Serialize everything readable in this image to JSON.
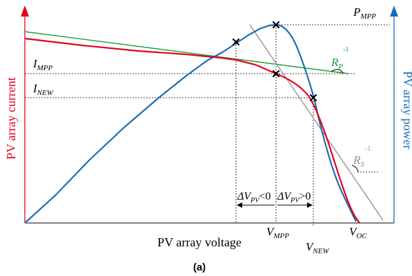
{
  "figure": {
    "caption": "(a)",
    "colors": {
      "current_axis": "#e4001b",
      "power_axis": "#1a6db5",
      "iv_curve": "#e4001b",
      "pv_curve": "#1a6db5",
      "rp_line": "#1f9e3a",
      "rs_line": "#8c8c8c",
      "guides": "#000000"
    },
    "labels": {
      "left_axis": "PV array current",
      "right_axis": "PV array power",
      "bottom_axis": "PV array voltage",
      "i_mpp": {
        "main": "I",
        "sub": "MPP"
      },
      "i_new": {
        "main": "I",
        "sub": "NEW"
      },
      "p_mpp": {
        "main": "P",
        "sub": "MPP"
      },
      "v_mpp": {
        "main": "V",
        "sub": "MPP"
      },
      "v_new": {
        "main": "V",
        "sub": "NEW"
      },
      "v_oc": {
        "main": "V",
        "sub": "OC"
      },
      "rp": {
        "main": "R",
        "sub": "P",
        "sup": "-1"
      },
      "rs": {
        "main": "R",
        "sub": "S",
        "sup": "-1"
      },
      "dv_neg": {
        "main": "ΔV",
        "sub": "PV",
        "rest": "<0"
      },
      "dv_pos": {
        "main": "ΔV",
        "sub": "PV",
        "rest": ">0"
      }
    },
    "markers": [
      "x",
      "x",
      "x",
      "x"
    ]
  }
}
